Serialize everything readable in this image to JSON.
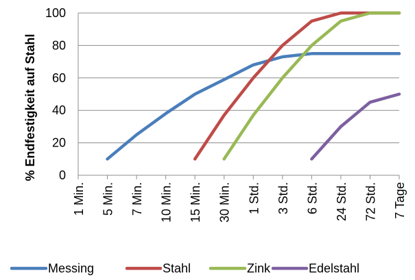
{
  "chart_data": {
    "type": "line",
    "title": "",
    "xlabel": "",
    "ylabel": "% Endfestigkeit auf Stahl",
    "categories": [
      "1 Min.",
      "5 Min.",
      "7 Min.",
      "10 Min.",
      "15 Min.",
      "30 Min.",
      "1 Std.",
      "3 Std.",
      "6 Std.",
      "24 Std.",
      "72 Std.",
      "7 Tage"
    ],
    "ylim": [
      0,
      100
    ],
    "yticks": [
      0,
      20,
      40,
      60,
      80,
      100
    ],
    "grid": true,
    "legend_position": "bottom",
    "series": [
      {
        "name": "Messing",
        "color": "#4a7ebb",
        "values": [
          null,
          10,
          25,
          38,
          50,
          59,
          68,
          73,
          75,
          75,
          75,
          75
        ]
      },
      {
        "name": "Stahl",
        "color": "#be4b48",
        "values": [
          null,
          null,
          null,
          null,
          10,
          37,
          60,
          80,
          95,
          100,
          100,
          100
        ]
      },
      {
        "name": "Zink",
        "color": "#98b954",
        "values": [
          null,
          null,
          null,
          null,
          null,
          10,
          37,
          60,
          80,
          95,
          100,
          100
        ]
      },
      {
        "name": "Edelstahl",
        "color": "#7d60a0",
        "values": [
          null,
          null,
          null,
          null,
          null,
          null,
          null,
          null,
          10,
          30,
          45,
          50
        ]
      }
    ]
  }
}
